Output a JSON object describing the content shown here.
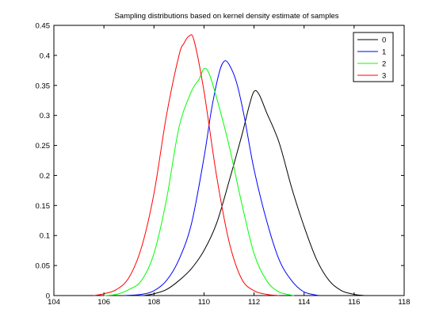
{
  "chart_data": {
    "type": "line",
    "title": "Sampling distributions based on kernel density estimate of samples",
    "xlabel": "",
    "ylabel": "",
    "xlim": [
      104,
      118
    ],
    "ylim": [
      0,
      0.45
    ],
    "xticks": [
      "104",
      "106",
      "108",
      "110",
      "112",
      "114",
      "116",
      "118"
    ],
    "yticks": [
      "0",
      "0.05",
      "0.1",
      "0.15",
      "0.2",
      "0.25",
      "0.3",
      "0.35",
      "0.4",
      "0.45"
    ],
    "grid": false,
    "legend_position": "top-right",
    "series": [
      {
        "name": "0",
        "color": "#000000",
        "x": [
          107.6,
          108.0,
          108.5,
          109.0,
          109.5,
          110.0,
          110.5,
          111.0,
          111.5,
          111.8,
          112.0,
          112.2,
          112.5,
          113.0,
          113.5,
          114.0,
          114.5,
          115.0,
          115.5,
          116.0,
          116.4
        ],
        "y": [
          0.0,
          0.003,
          0.01,
          0.025,
          0.045,
          0.075,
          0.12,
          0.19,
          0.265,
          0.315,
          0.34,
          0.335,
          0.305,
          0.255,
          0.18,
          0.115,
          0.06,
          0.025,
          0.008,
          0.002,
          0.0
        ]
      },
      {
        "name": "1",
        "color": "#0000ff",
        "x": [
          106.8,
          107.5,
          108.0,
          108.5,
          109.0,
          109.5,
          110.0,
          110.3,
          110.6,
          110.8,
          111.0,
          111.3,
          111.6,
          112.0,
          112.5,
          113.0,
          113.5,
          114.0,
          114.6
        ],
        "y": [
          0.0,
          0.002,
          0.008,
          0.025,
          0.06,
          0.12,
          0.23,
          0.31,
          0.37,
          0.39,
          0.385,
          0.355,
          0.3,
          0.21,
          0.125,
          0.06,
          0.025,
          0.006,
          0.0
        ]
      },
      {
        "name": "2",
        "color": "#00ff00",
        "x": [
          106.0,
          106.5,
          107.0,
          107.5,
          108.0,
          108.5,
          109.0,
          109.5,
          109.8,
          110.0,
          110.2,
          110.5,
          111.0,
          111.5,
          112.0,
          112.5,
          113.0,
          113.6
        ],
        "y": [
          0.0,
          0.002,
          0.01,
          0.025,
          0.07,
          0.16,
          0.28,
          0.34,
          0.36,
          0.378,
          0.37,
          0.33,
          0.25,
          0.155,
          0.07,
          0.025,
          0.006,
          0.0
        ]
      },
      {
        "name": "3",
        "color": "#ff0000",
        "x": [
          105.6,
          106.0,
          106.5,
          107.0,
          107.5,
          108.0,
          108.5,
          109.0,
          109.2,
          109.4,
          109.6,
          110.0,
          110.5,
          111.0,
          111.5,
          112.0,
          112.5,
          113.0
        ],
        "y": [
          0.0,
          0.003,
          0.01,
          0.03,
          0.08,
          0.17,
          0.3,
          0.4,
          0.42,
          0.432,
          0.425,
          0.34,
          0.2,
          0.09,
          0.028,
          0.008,
          0.002,
          0.0
        ]
      }
    ]
  }
}
